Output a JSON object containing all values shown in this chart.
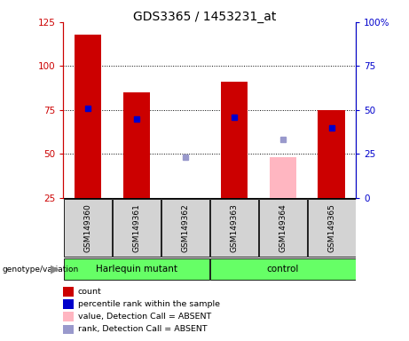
{
  "title": "GDS3365 / 1453231_at",
  "samples": [
    "GSM149360",
    "GSM149361",
    "GSM149362",
    "GSM149363",
    "GSM149364",
    "GSM149365"
  ],
  "bar_bottom": 25,
  "ylim_left": [
    25,
    125
  ],
  "ylim_right": [
    0,
    100
  ],
  "left_ticks": [
    25,
    50,
    75,
    100,
    125
  ],
  "right_ticks": [
    0,
    25,
    50,
    75,
    100
  ],
  "right_tick_labels": [
    "0",
    "25",
    "50",
    "75",
    "100%"
  ],
  "red_bars": [
    118,
    85,
    22,
    91,
    22,
    75
  ],
  "blue_squares": [
    76,
    70,
    null,
    71,
    null,
    65
  ],
  "pink_bars": [
    null,
    null,
    null,
    null,
    48,
    null
  ],
  "light_blue_squares": [
    null,
    null,
    48,
    null,
    58,
    null
  ],
  "red_color": "#cc0000",
  "blue_color": "#0000cc",
  "pink_color": "#ffb6c1",
  "light_blue_color": "#9999cc",
  "bar_width": 0.55,
  "harlequin_samples": [
    0,
    1,
    2
  ],
  "control_samples": [
    3,
    4,
    5
  ],
  "legend_items": [
    {
      "label": "count",
      "color": "#cc0000"
    },
    {
      "label": "percentile rank within the sample",
      "color": "#0000cc"
    },
    {
      "label": "value, Detection Call = ABSENT",
      "color": "#ffb6c1"
    },
    {
      "label": "rank, Detection Call = ABSENT",
      "color": "#9999cc"
    }
  ]
}
